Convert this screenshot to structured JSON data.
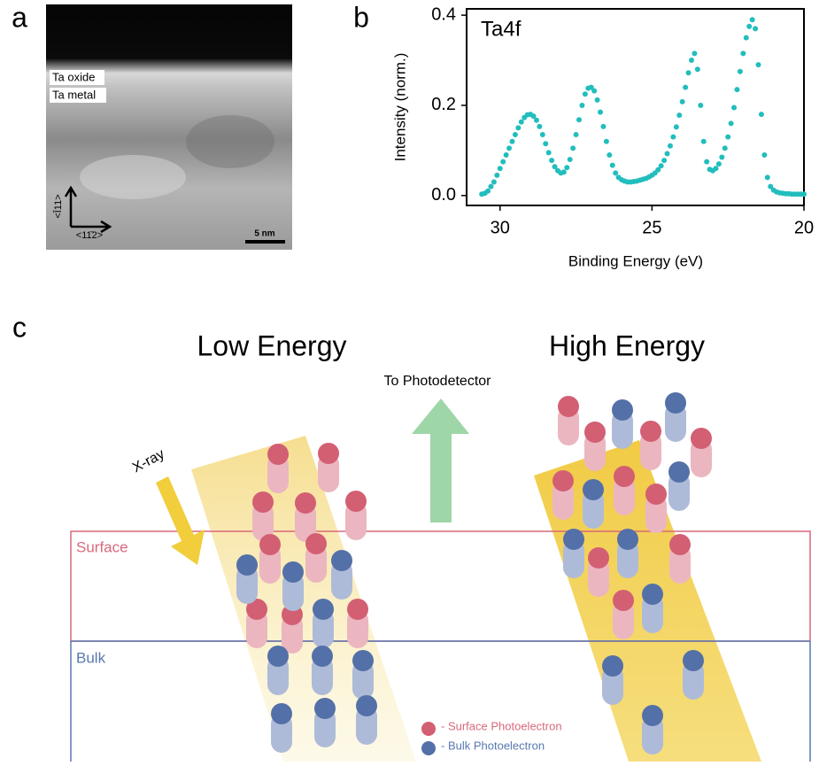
{
  "panel_labels": [
    "a",
    "b",
    "c"
  ],
  "panel_a": {
    "layer_labels": [
      "Ta oxide",
      "Ta metal"
    ],
    "directions": [
      "<Ī11>",
      "<11̄2>"
    ],
    "scale_bar": "5 nm"
  },
  "chart_data": {
    "type": "scatter",
    "annotation": "Ta4f",
    "x_label": "Binding Energy (eV)",
    "y_label": "Intensity (norm.)",
    "xlim": [
      31.1,
      20
    ],
    "ylim": [
      -0.022,
      0.414
    ],
    "xticks": [
      30,
      25,
      20
    ],
    "yticks": [
      {
        "value": 0,
        "label": "0.0"
      },
      0.2,
      0.4
    ],
    "color": "#22bdbd",
    "x": [
      30.6,
      30.5,
      30.4,
      30.3,
      30.2,
      30.1,
      30.0,
      29.9,
      29.8,
      29.7,
      29.6,
      29.5,
      29.4,
      29.3,
      29.2,
      29.1,
      29.0,
      28.9,
      28.8,
      28.7,
      28.6,
      28.5,
      28.4,
      28.3,
      28.2,
      28.1,
      28.0,
      27.9,
      27.8,
      27.7,
      27.6,
      27.5,
      27.4,
      27.3,
      27.2,
      27.1,
      27.0,
      26.9,
      26.8,
      26.7,
      26.6,
      26.5,
      26.4,
      26.3,
      26.2,
      26.1,
      26.0,
      25.9,
      25.8,
      25.7,
      25.6,
      25.5,
      25.4,
      25.3,
      25.2,
      25.1,
      25.0,
      24.9,
      24.8,
      24.7,
      24.6,
      24.5,
      24.4,
      24.3,
      24.2,
      24.1,
      24.0,
      23.9,
      23.8,
      23.7,
      23.6,
      23.5,
      23.4,
      23.3,
      23.2,
      23.1,
      23.0,
      22.9,
      22.8,
      22.7,
      22.6,
      22.5,
      22.4,
      22.3,
      22.2,
      22.1,
      22.0,
      21.9,
      21.8,
      21.7,
      21.6,
      21.5,
      21.4,
      21.3,
      21.2,
      21.1,
      21.0,
      20.9,
      20.8,
      20.7,
      20.6,
      20.5,
      20.4,
      20.3,
      20.2,
      20.1,
      20.0
    ],
    "values": [
      0.003,
      0.005,
      0.01,
      0.02,
      0.03,
      0.045,
      0.06,
      0.075,
      0.09,
      0.105,
      0.12,
      0.135,
      0.15,
      0.163,
      0.173,
      0.179,
      0.18,
      0.176,
      0.167,
      0.153,
      0.135,
      0.115,
      0.095,
      0.078,
      0.064,
      0.055,
      0.05,
      0.052,
      0.062,
      0.08,
      0.105,
      0.135,
      0.168,
      0.2,
      0.225,
      0.238,
      0.24,
      0.232,
      0.212,
      0.185,
      0.153,
      0.12,
      0.09,
      0.067,
      0.05,
      0.04,
      0.035,
      0.032,
      0.03,
      0.03,
      0.031,
      0.032,
      0.034,
      0.036,
      0.038,
      0.041,
      0.045,
      0.05,
      0.057,
      0.066,
      0.078,
      0.093,
      0.11,
      0.13,
      0.152,
      0.178,
      0.208,
      0.24,
      0.272,
      0.3,
      0.315,
      0.28,
      0.2,
      0.12,
      0.075,
      0.058,
      0.055,
      0.06,
      0.07,
      0.085,
      0.105,
      0.13,
      0.16,
      0.195,
      0.235,
      0.275,
      0.315,
      0.35,
      0.375,
      0.39,
      0.37,
      0.29,
      0.18,
      0.09,
      0.04,
      0.02,
      0.012,
      0.008,
      0.006,
      0.005,
      0.004,
      0.004,
      0.003,
      0.003,
      0.003,
      0.003,
      0.003
    ]
  },
  "panel_c": {
    "titles": [
      "Low Energy",
      "High Energy"
    ],
    "detector": "To Photodetector",
    "beam": "X-ray",
    "regions": [
      "Surface",
      "Bulk"
    ],
    "legend": [
      "- Surface Photoelectron",
      "- Bulk Photoelectron"
    ]
  }
}
